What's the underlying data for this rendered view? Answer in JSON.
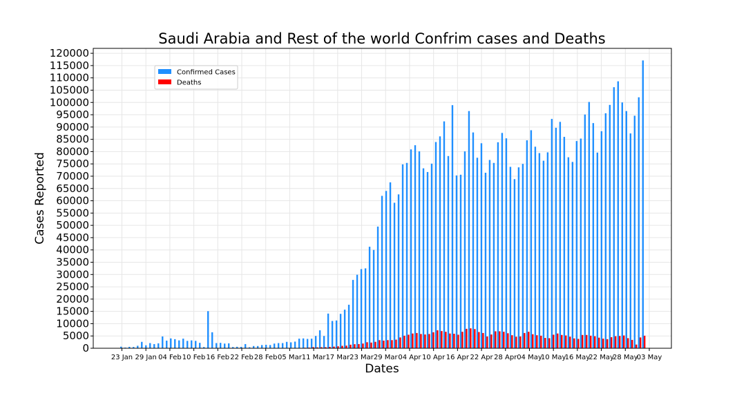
{
  "chart_data": {
    "type": "bar",
    "title": "Saudi Arabia and Rest of the world Confrim cases and Deaths",
    "xlabel": "Dates",
    "ylabel": "Cases Reported",
    "ylim": [
      0,
      122000
    ],
    "yticks": [
      0,
      5000,
      10000,
      15000,
      20000,
      25000,
      30000,
      35000,
      40000,
      45000,
      50000,
      55000,
      60000,
      65000,
      70000,
      75000,
      80000,
      85000,
      90000,
      95000,
      100000,
      105000,
      110000,
      115000,
      120000
    ],
    "xtick_labels": [
      "23 Jan",
      "29 Jan",
      "04 Feb",
      "10 Feb",
      "16 Feb",
      "22 Feb",
      "28 Feb",
      "05 Mar",
      "11 Mar",
      "17 Mar",
      "23 Mar",
      "29 Mar",
      "04 Apr",
      "10 Apr",
      "16 Apr",
      "22 Apr",
      "28 Apr",
      "04 May",
      "10 May",
      "16 May",
      "22 May",
      "28 May",
      "03 May"
    ],
    "grid": true,
    "legend_position": "upper-left",
    "start_date": "2020-01-23",
    "series": [
      {
        "name": "Confirmed Cases",
        "color": "#1f8fff",
        "values": [
          650,
          270,
          580,
          525,
          1000,
          2600,
          1200,
          2100,
          1700,
          2000,
          4800,
          3100,
          4000,
          3700,
          3200,
          3900,
          3000,
          3200,
          3000,
          2200,
          500,
          15100,
          6500,
          2100,
          2200,
          1900,
          2000,
          500,
          600,
          550,
          1700,
          400,
          900,
          900,
          1300,
          1400,
          1300,
          1900,
          2100,
          2100,
          2600,
          2400,
          2700,
          3900,
          4000,
          3800,
          3900,
          5000,
          7300,
          5000,
          14100,
          11100,
          11300,
          14000,
          15700,
          17700,
          27800,
          29900,
          32200,
          32500,
          41300,
          40000,
          49500,
          62000,
          64000,
          67500,
          59200,
          62600,
          74800,
          75400,
          80900,
          82600,
          80100,
          73200,
          71700,
          75100,
          83900,
          86200,
          92300,
          78200,
          98900,
          70300,
          70600,
          80100,
          96500,
          87800,
          77500,
          83400,
          71400,
          76600,
          75400,
          83800,
          87600,
          85400,
          73800,
          68800,
          73600,
          75000,
          84600,
          88700,
          82000,
          79400,
          76300,
          79700,
          93300,
          89700,
          92100,
          86000,
          77700,
          75800,
          84300,
          85300,
          95100,
          100200,
          91600,
          79600,
          88300,
          95600,
          99000,
          106200,
          108600,
          100000,
          96500,
          87400,
          94600,
          102100,
          117100
        ]
      },
      {
        "name": "Deaths",
        "color": "#ff0000",
        "values": [
          18,
          16,
          26,
          25,
          26,
          38,
          43,
          46,
          45,
          57,
          64,
          66,
          73,
          73,
          86,
          89,
          97,
          108,
          97,
          146,
          121,
          143,
          142,
          106,
          98,
          139,
          115,
          118,
          109,
          97,
          150,
          71,
          52,
          29,
          44,
          47,
          35,
          42,
          60,
          52,
          80,
          70,
          90,
          126,
          209,
          260,
          460,
          360,
          420,
          430,
          550,
          670,
          800,
          980,
          1070,
          1440,
          1650,
          1700,
          1920,
          2450,
          2300,
          2610,
          3300,
          3100,
          3300,
          3300,
          3500,
          4400,
          5100,
          5500,
          6000,
          6200,
          5800,
          5600,
          5800,
          6500,
          7300,
          7000,
          6700,
          6000,
          5900,
          5500,
          6700,
          7900,
          8100,
          7800,
          6600,
          6200,
          4800,
          5600,
          6900,
          6900,
          6700,
          6100,
          5300,
          4700,
          4800,
          6200,
          6700,
          5700,
          5300,
          5100,
          4200,
          4100,
          5500,
          6000,
          5400,
          5200,
          4700,
          4000,
          3800,
          5400,
          5400,
          5100,
          4900,
          4300,
          3900,
          3700,
          4500,
          4900,
          5000,
          5200,
          4100,
          3400,
          1500,
          4400,
          5100,
          4900
        ]
      }
    ]
  }
}
